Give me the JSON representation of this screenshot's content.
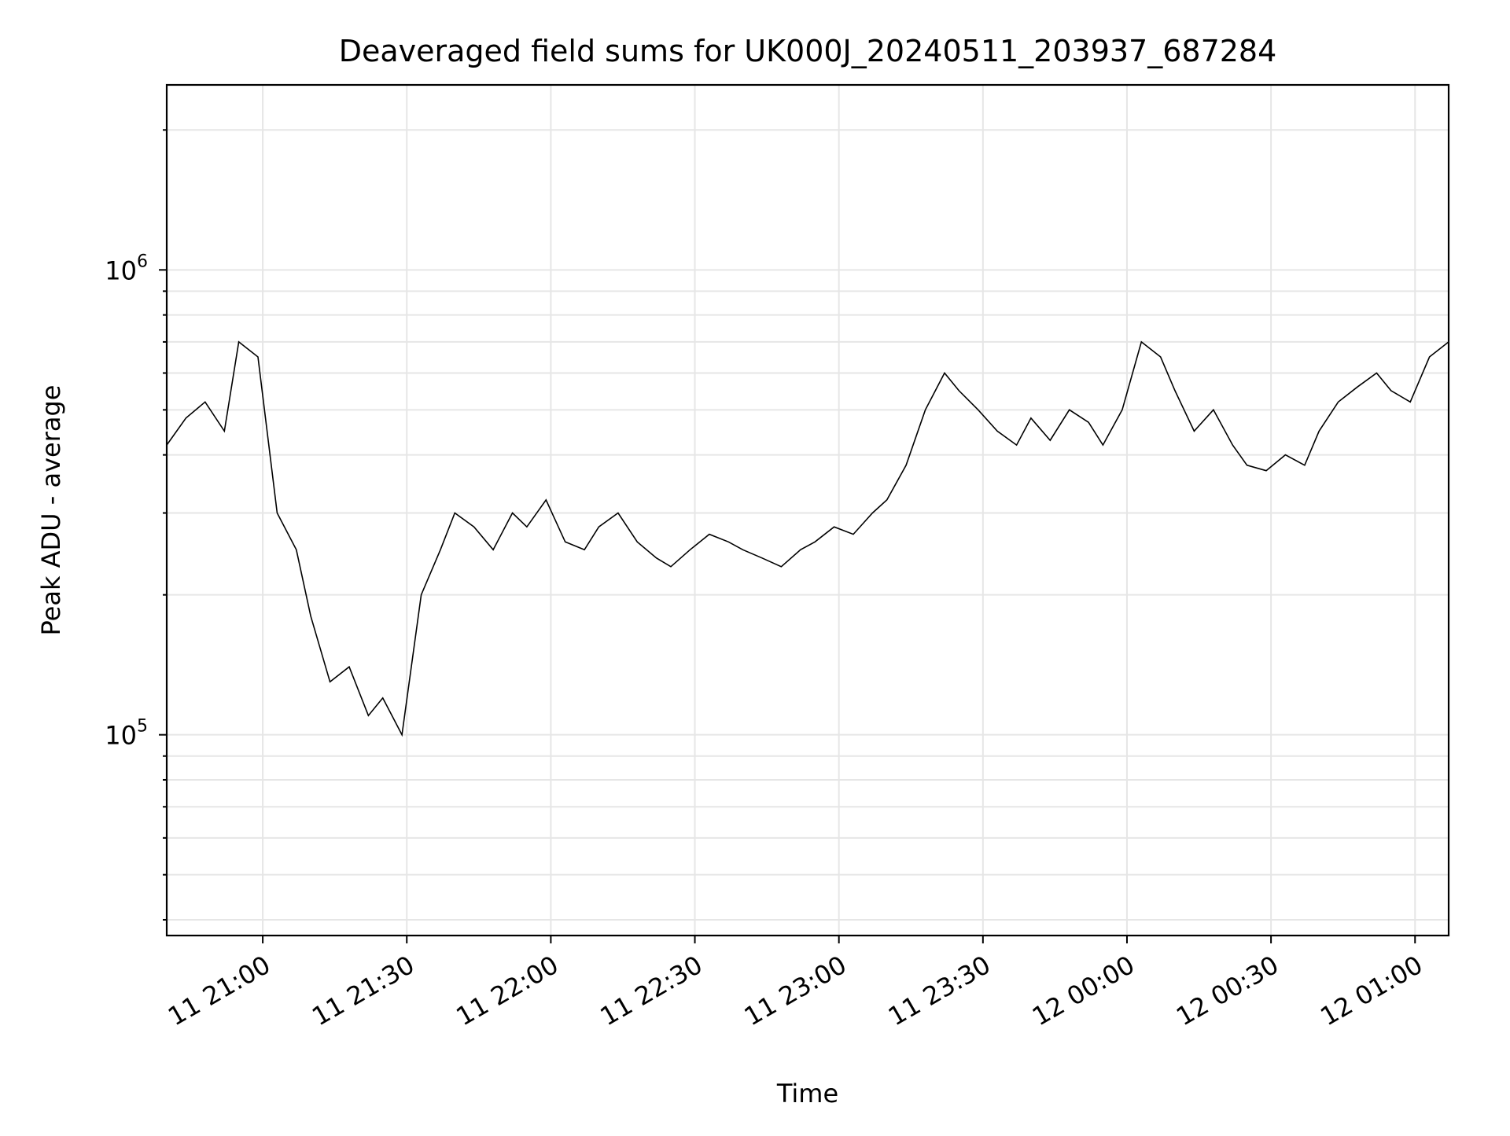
{
  "chart_data": {
    "type": "line",
    "title": "Deaveraged field sums for UK000J_20240511_203937_687284",
    "xlabel": "Time",
    "ylabel": "Peak ADU - average",
    "yscale": "log",
    "ylim": [
      37000,
      2500000
    ],
    "xlim": [
      "2024-05-11 20:40:00",
      "2024-05-12 01:07:00"
    ],
    "grid": true,
    "x_tick_labels": [
      "11 21:00",
      "11 21:30",
      "11 22:00",
      "11 22:30",
      "11 23:00",
      "11 23:30",
      "12 00:00",
      "12 00:30",
      "12 01:00"
    ],
    "x_ticks": [
      "2024-05-11 21:00",
      "2024-05-11 21:30",
      "2024-05-11 22:00",
      "2024-05-11 22:30",
      "2024-05-11 23:00",
      "2024-05-11 23:30",
      "2024-05-12 00:00",
      "2024-05-12 00:30",
      "2024-05-12 01:00"
    ],
    "y_tick_labels": [
      {
        "value": 100000,
        "base": "10",
        "exp": "5"
      },
      {
        "value": 1000000,
        "base": "10",
        "exp": "6"
      }
    ],
    "line_color": "#000000",
    "series": [
      {
        "values_note": "",
        "x": [
          "2024-05-11 20:40",
          "2024-05-11 20:44",
          "2024-05-11 20:48",
          "2024-05-11 20:52",
          "2024-05-11 20:55",
          "2024-05-11 20:59",
          "2024-05-11 21:03",
          "2024-05-11 21:07",
          "2024-05-11 21:10",
          "2024-05-11 21:14",
          "2024-05-11 21:18",
          "2024-05-11 21:22",
          "2024-05-11 21:25",
          "2024-05-11 21:29",
          "2024-05-11 21:33",
          "2024-05-11 21:37",
          "2024-05-11 21:40",
          "2024-05-11 21:44",
          "2024-05-11 21:48",
          "2024-05-11 21:52",
          "2024-05-11 21:55",
          "2024-05-11 21:59",
          "2024-05-11 22:03",
          "2024-05-11 22:07",
          "2024-05-11 22:10",
          "2024-05-11 22:14",
          "2024-05-11 22:18",
          "2024-05-11 22:22",
          "2024-05-11 22:25",
          "2024-05-11 22:29",
          "2024-05-11 22:33",
          "2024-05-11 22:37",
          "2024-05-11 22:40",
          "2024-05-11 22:44",
          "2024-05-11 22:48",
          "2024-05-11 22:52",
          "2024-05-11 22:55",
          "2024-05-11 22:59",
          "2024-05-11 23:03",
          "2024-05-11 23:07",
          "2024-05-11 23:10",
          "2024-05-11 23:14",
          "2024-05-11 23:18",
          "2024-05-11 23:22",
          "2024-05-11 23:25",
          "2024-05-11 23:29",
          "2024-05-11 23:33",
          "2024-05-11 23:37",
          "2024-05-11 23:40",
          "2024-05-11 23:44",
          "2024-05-11 23:48",
          "2024-05-11 23:52",
          "2024-05-11 23:55",
          "2024-05-11 23:59",
          "2024-05-12 00:03",
          "2024-05-12 00:07",
          "2024-05-12 00:10",
          "2024-05-12 00:14",
          "2024-05-12 00:18",
          "2024-05-12 00:22",
          "2024-05-12 00:25",
          "2024-05-12 00:29",
          "2024-05-12 00:33",
          "2024-05-12 00:37",
          "2024-05-12 00:40",
          "2024-05-12 00:44",
          "2024-05-12 00:48",
          "2024-05-12 00:52",
          "2024-05-12 00:55",
          "2024-05-12 00:59",
          "2024-05-12 01:03",
          "2024-05-12 01:07"
        ],
        "y": [
          420000,
          480000,
          520000,
          450000,
          700000,
          650000,
          300000,
          250000,
          180000,
          130000,
          140000,
          110000,
          120000,
          100000,
          200000,
          250000,
          300000,
          280000,
          250000,
          300000,
          280000,
          320000,
          260000,
          250000,
          280000,
          300000,
          260000,
          240000,
          230000,
          250000,
          270000,
          260000,
          250000,
          240000,
          230000,
          250000,
          260000,
          280000,
          270000,
          300000,
          320000,
          380000,
          500000,
          600000,
          550000,
          500000,
          450000,
          420000,
          480000,
          430000,
          500000,
          470000,
          420000,
          500000,
          700000,
          650000,
          550000,
          450000,
          500000,
          420000,
          380000,
          370000,
          400000,
          380000,
          450000,
          520000,
          560000,
          600000,
          550000,
          520000,
          650000,
          700000
        ]
      }
    ]
  }
}
